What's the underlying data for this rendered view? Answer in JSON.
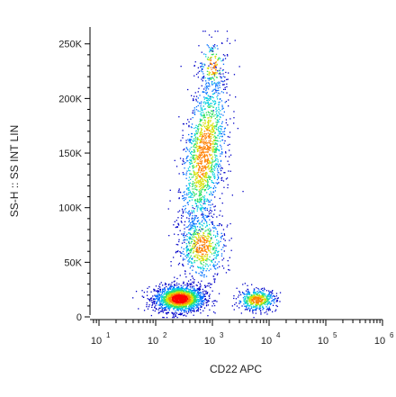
{
  "chart_data": {
    "type": "scatter",
    "xlabel": "CD22 APC",
    "ylabel": "SS-H :: SS INT LIN",
    "x_scale": "log",
    "xlim": [
      10,
      1000000
    ],
    "ylim": [
      0,
      262144
    ],
    "x_ticks": [
      {
        "base": "10",
        "exp": "1",
        "value": 10
      },
      {
        "base": "10",
        "exp": "2",
        "value": 100
      },
      {
        "base": "10",
        "exp": "3",
        "value": 1000
      },
      {
        "base": "10",
        "exp": "4",
        "value": 10000
      },
      {
        "base": "10",
        "exp": "5",
        "value": 100000
      },
      {
        "base": "10",
        "exp": "6",
        "value": 1000000
      }
    ],
    "y_ticks": [
      {
        "label": "0",
        "value": 0
      },
      {
        "label": "50K",
        "value": 50000
      },
      {
        "label": "100K",
        "value": 100000
      },
      {
        "label": "150K",
        "value": 150000
      },
      {
        "label": "200K",
        "value": 200000
      },
      {
        "label": "250K",
        "value": 250000
      }
    ],
    "grid": false,
    "legend": "none",
    "colormap": [
      "#0000c8",
      "#0070ff",
      "#00d0e0",
      "#30e060",
      "#d8e000",
      "#ff8000",
      "#ff0000"
    ],
    "populations": [
      {
        "x": 260,
        "y": 17000,
        "count": 1800
      },
      {
        "x": 700,
        "y": 150000,
        "count": 1500
      },
      {
        "x": 650,
        "y": 65000,
        "count": 600
      },
      {
        "x": 6000,
        "y": 16000,
        "count": 500
      },
      {
        "x": 1000,
        "y": 230000,
        "count": 150
      }
    ]
  }
}
